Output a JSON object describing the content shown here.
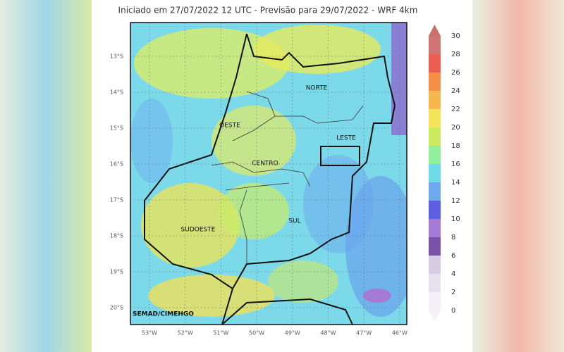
{
  "header": {
    "title": "Iniciado em 27/07/2022 12 UTC - Previsão para 29/07/2022 - WRF 4km"
  },
  "latitude_labels": [
    "13°S",
    "14°S",
    "15°S",
    "16°S",
    "17°S",
    "18°S",
    "19°S",
    "20°S"
  ],
  "longitude_labels": [
    "53°W",
    "52°W",
    "51°W",
    "50°W",
    "49°W",
    "48°W",
    "47°W",
    "46°W"
  ],
  "regions": [
    "NORTE",
    "LESTE",
    "OESTE",
    "CENTRO",
    "SUDOESTE",
    "SUL"
  ],
  "credit": "SEMAD/CIMEHGO",
  "colorbar": {
    "ticks": [
      0,
      2,
      4,
      6,
      8,
      10,
      12,
      14,
      16,
      18,
      20,
      22,
      24,
      26,
      28,
      30
    ],
    "colors": [
      "#f3f1f7",
      "#e6e1ee",
      "#d6cce2",
      "#7a52a8",
      "#a57ad4",
      "#5b5fe0",
      "#6fa9ee",
      "#6fdbea",
      "#93ee9c",
      "#cdea5e",
      "#f5e45a",
      "#f5b74e",
      "#f38f48",
      "#ec5d52",
      "#cf7474"
    ]
  }
}
